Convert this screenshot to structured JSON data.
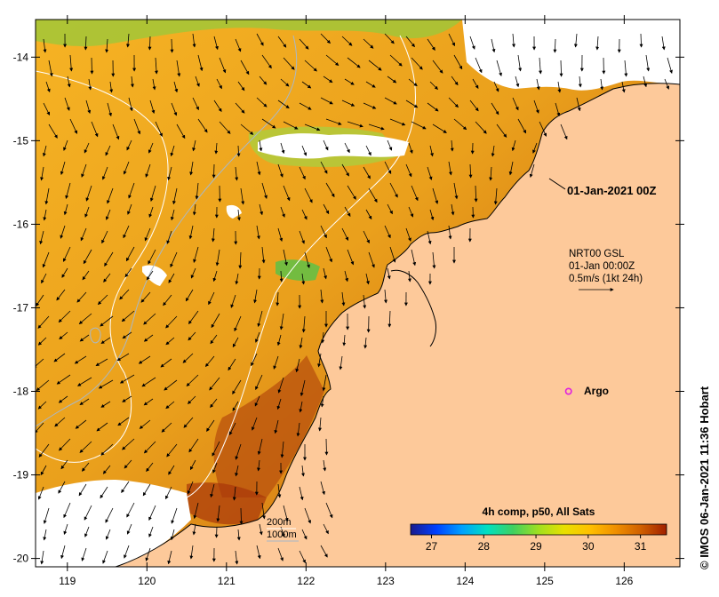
{
  "map": {
    "lon_range": [
      118.6,
      126.7
    ],
    "lat_range": [
      -20.1,
      -13.55
    ],
    "lon_ticks": [
      119,
      120,
      121,
      122,
      123,
      124,
      125,
      126
    ],
    "lat_ticks": [
      -14,
      -15,
      -16,
      -17,
      -18,
      -19,
      -20
    ],
    "land_color": "#fdc99a",
    "nodata_color": "#ffffff"
  },
  "labels": {
    "datetime_stamp": "01-Jan-2021 00Z",
    "current_title": "NRT00 GSL",
    "current_time": "01-Jan 00:00Z",
    "current_scale": "0.5m/s (1kt 24h)",
    "argo_label": "Argo",
    "isobath_200": "200m",
    "isobath_1000": "1000m",
    "colorbar_title": "4h comp, p50, All Sats",
    "credit": "© IMOS 06-Jan-2021 11:36 Hobart"
  },
  "colorbar": {
    "ticks": [
      "27",
      "28",
      "29",
      "30",
      "31"
    ],
    "tick_values": [
      27,
      28,
      29,
      30,
      31
    ],
    "range": [
      26.6,
      31.5
    ],
    "colors": [
      "#1a1a8c",
      "#0040ff",
      "#00a0ff",
      "#00e0c0",
      "#40d060",
      "#a0e020",
      "#e8e000",
      "#ffc000",
      "#f09000",
      "#d06000",
      "#a02000"
    ]
  },
  "argo": {
    "lon": 125.3,
    "lat": -18.0,
    "color": "#e020e0"
  }
}
